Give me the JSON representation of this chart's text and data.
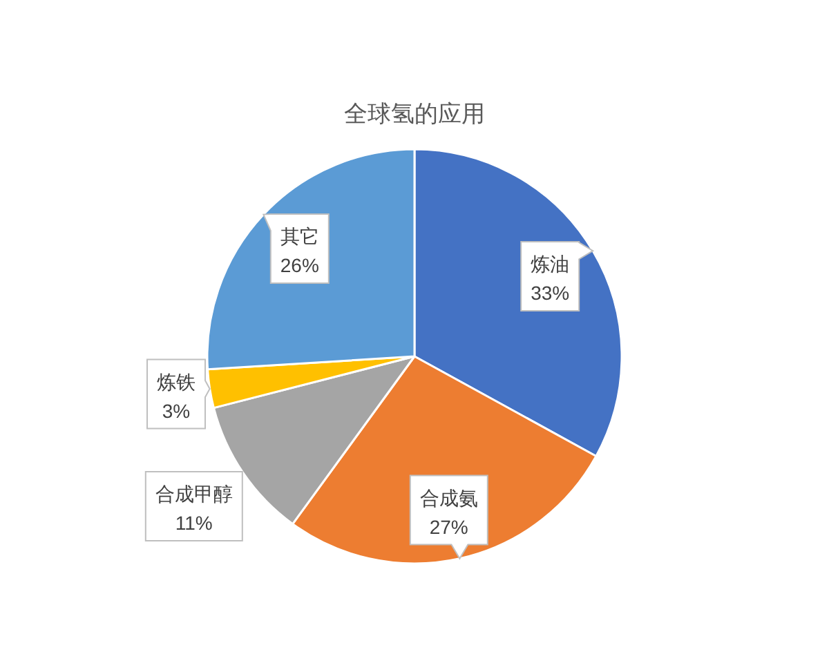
{
  "chart_data": {
    "type": "pie",
    "title": "全球氢的应用",
    "categories": [
      "炼油",
      "合成氨",
      "合成甲醇",
      "炼铁",
      "其它"
    ],
    "values": [
      33,
      27,
      11,
      3,
      26
    ],
    "colors": [
      "#4472c4",
      "#ed7d31",
      "#a5a5a5",
      "#ffc000",
      "#5b9bd5"
    ],
    "value_labels": [
      "33%",
      "27%",
      "11%",
      "3%",
      "26%"
    ]
  }
}
